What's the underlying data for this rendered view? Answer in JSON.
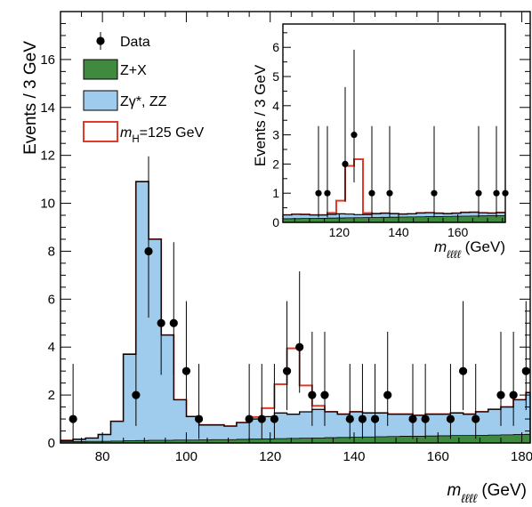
{
  "chart_data": {
    "type": "histogram",
    "xlabel_var": "m",
    "xlabel_sub": "ℓℓℓℓ",
    "xlabel_unit": " (GeV)",
    "ylabel": "Events / 3 GeV",
    "xlim": [
      70,
      182
    ],
    "ylim": [
      0,
      18
    ],
    "x_ticks": [
      80,
      100,
      120,
      140,
      160,
      180
    ],
    "y_ticks": [
      0,
      2,
      4,
      6,
      8,
      10,
      12,
      14,
      16
    ],
    "legend_position": "top-left",
    "legend": [
      {
        "key": "data",
        "label": "Data"
      },
      {
        "key": "zx",
        "label": "Z+X"
      },
      {
        "key": "zz",
        "label": "Zγ*, ZZ"
      },
      {
        "key": "higgs",
        "label_var": "m",
        "label_sub": "H",
        "label_rest": "=125 GeV"
      }
    ],
    "bin_edges": [
      70,
      73,
      76,
      79,
      82,
      85,
      88,
      91,
      94,
      97,
      100,
      103,
      106,
      109,
      112,
      115,
      118,
      121,
      124,
      127,
      130,
      133,
      136,
      139,
      142,
      145,
      148,
      151,
      154,
      157,
      160,
      163,
      166,
      169,
      172,
      175,
      178,
      181,
      182
    ],
    "zx": [
      0.05,
      0.06,
      0.07,
      0.07,
      0.08,
      0.09,
      0.1,
      0.11,
      0.11,
      0.12,
      0.12,
      0.13,
      0.14,
      0.14,
      0.15,
      0.16,
      0.17,
      0.18,
      0.19,
      0.2,
      0.21,
      0.22,
      0.23,
      0.24,
      0.25,
      0.26,
      0.27,
      0.28,
      0.28,
      0.29,
      0.3,
      0.31,
      0.31,
      0.32,
      0.33,
      0.34,
      0.35,
      0.36
    ],
    "zz": [
      0.1,
      0.15,
      0.2,
      0.35,
      0.9,
      3.7,
      10.9,
      8.5,
      4.5,
      1.8,
      1.1,
      0.75,
      0.75,
      0.7,
      0.85,
      1.0,
      1.1,
      1.25,
      1.2,
      1.3,
      1.4,
      1.3,
      1.2,
      1.3,
      1.25,
      1.25,
      1.2,
      1.2,
      1.15,
      1.2,
      1.2,
      1.25,
      1.2,
      1.3,
      1.4,
      1.5,
      1.8,
      2.1
    ],
    "higgs_excess": [
      0,
      0,
      0,
      0,
      0,
      0,
      0,
      0,
      0,
      0,
      0,
      0,
      0,
      0,
      0,
      0.08,
      0.35,
      1.2,
      2.75,
      1.1,
      0.15,
      0,
      0,
      0,
      0,
      0,
      0,
      0,
      0,
      0,
      0,
      0,
      0,
      0,
      0,
      0,
      0,
      0
    ],
    "data_points": [
      {
        "x": 73,
        "y": 1
      },
      {
        "x": 88,
        "y": 2
      },
      {
        "x": 91,
        "y": 8
      },
      {
        "x": 94,
        "y": 5
      },
      {
        "x": 97,
        "y": 5
      },
      {
        "x": 100,
        "y": 3
      },
      {
        "x": 103,
        "y": 1
      },
      {
        "x": 115,
        "y": 1
      },
      {
        "x": 118,
        "y": 1
      },
      {
        "x": 121,
        "y": 1
      },
      {
        "x": 124,
        "y": 3
      },
      {
        "x": 127,
        "y": 4
      },
      {
        "x": 130,
        "y": 2
      },
      {
        "x": 133,
        "y": 2
      },
      {
        "x": 139,
        "y": 1
      },
      {
        "x": 142,
        "y": 1
      },
      {
        "x": 145,
        "y": 1
      },
      {
        "x": 148,
        "y": 2
      },
      {
        "x": 154,
        "y": 1
      },
      {
        "x": 157,
        "y": 1
      },
      {
        "x": 163,
        "y": 1
      },
      {
        "x": 166,
        "y": 3
      },
      {
        "x": 169,
        "y": 1
      },
      {
        "x": 175,
        "y": 2
      },
      {
        "x": 178,
        "y": 2
      },
      {
        "x": 181,
        "y": 3
      }
    ],
    "inset": {
      "ylabel": "Events / 3 GeV",
      "xlabel_var": "m",
      "xlabel_sub": "ℓℓℓℓ",
      "xlabel_unit": " (GeV)",
      "xlim": [
        101,
        176
      ],
      "ylim": [
        0,
        6.8
      ],
      "x_ticks": [
        120,
        140,
        160
      ],
      "y_ticks": [
        0,
        1,
        2,
        3,
        4,
        5,
        6
      ],
      "data_points": [
        {
          "x": 113,
          "y": 1
        },
        {
          "x": 116,
          "y": 1
        },
        {
          "x": 122,
          "y": 2
        },
        {
          "x": 125,
          "y": 3
        },
        {
          "x": 131,
          "y": 1
        },
        {
          "x": 137,
          "y": 1
        },
        {
          "x": 152,
          "y": 1
        },
        {
          "x": 167,
          "y": 1
        },
        {
          "x": 173,
          "y": 1
        },
        {
          "x": 176,
          "y": 1
        }
      ]
    },
    "colors": {
      "zx_fill": "#3f8a3f",
      "zz_fill": "#9fcbed",
      "higgs_line": "#e03a2a",
      "data": "#000000"
    }
  }
}
